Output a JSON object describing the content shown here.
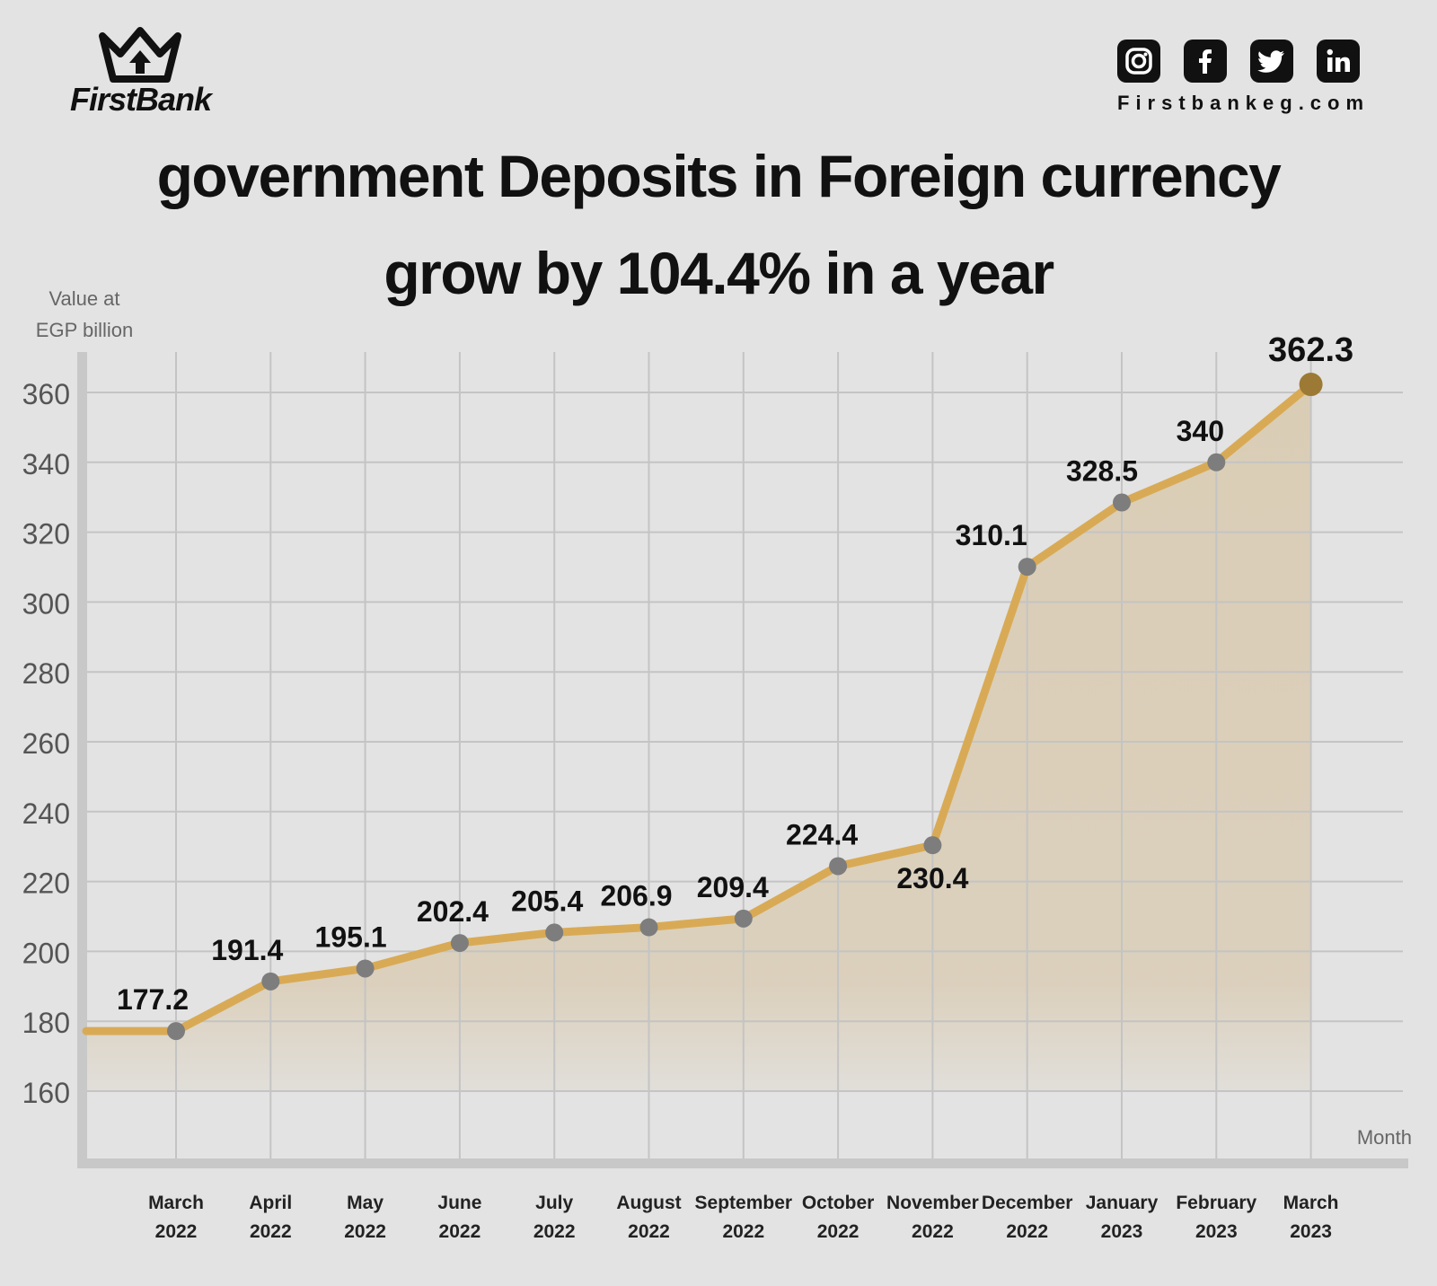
{
  "brand": {
    "name": "FirstBank",
    "website": "Firstbankeg.com",
    "social_icons": [
      "instagram-icon",
      "facebook-icon",
      "twitter-icon",
      "linkedin-icon"
    ]
  },
  "title_line1": "government Deposits in Foreign currency",
  "title_line2": "grow by 104.4% in a year",
  "colors": {
    "background": "#e3e3e3",
    "line": "#d9aa55",
    "area": "#dacdb6",
    "point": "#7d7d7d",
    "last_point": "#9c7a36",
    "grid": "#c4c4c4",
    "axis": "#c8c8c8"
  },
  "chart_data": {
    "type": "line",
    "title": "government Deposits in Foreign currency grow by 104.4% in a year",
    "ylabel_line1": "Value at",
    "ylabel_line2": "EGP billion",
    "xlabel": "Month",
    "ylim": [
      160,
      362.3
    ],
    "yticks": [
      160,
      180,
      200,
      220,
      240,
      260,
      280,
      300,
      320,
      340,
      360
    ],
    "grid": true,
    "area_fill": true,
    "categories": [
      [
        "March",
        "2022"
      ],
      [
        "April",
        "2022"
      ],
      [
        "May",
        "2022"
      ],
      [
        "June",
        "2022"
      ],
      [
        "July",
        "2022"
      ],
      [
        "August",
        "2022"
      ],
      [
        "September",
        "2022"
      ],
      [
        "October",
        "2022"
      ],
      [
        "November",
        "2022"
      ],
      [
        "December",
        "2022"
      ],
      [
        "January",
        "2023"
      ],
      [
        "February",
        "2023"
      ],
      [
        "March",
        "2023"
      ]
    ],
    "series": [
      {
        "values": [
          177.2,
          191.4,
          195.1,
          202.4,
          205.4,
          206.9,
          209.4,
          224.4,
          230.4,
          310.1,
          328.5,
          340,
          362.3
        ],
        "labels": [
          "177.2",
          "191.4",
          "195.1",
          "202.4",
          "205.4",
          "206.9",
          "209.4",
          "224.4",
          "230.4",
          "310.1",
          "328.5",
          "340",
          "362.3"
        ]
      }
    ]
  }
}
